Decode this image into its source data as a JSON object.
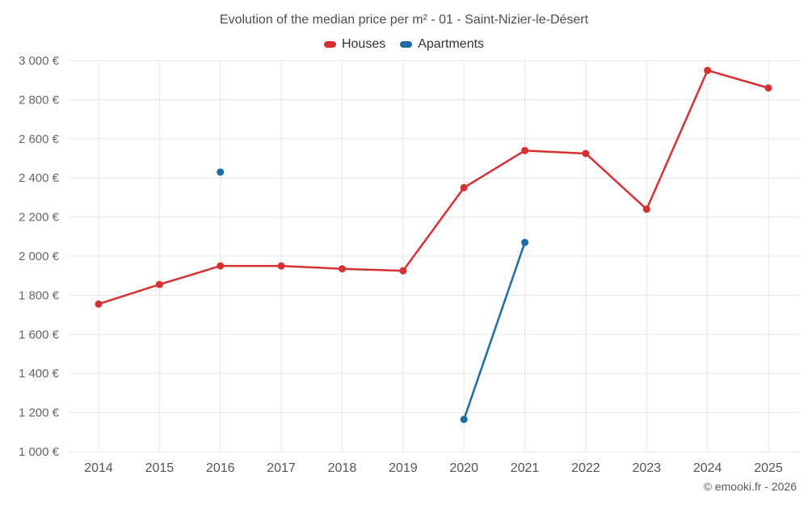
{
  "title": "Evolution of the median price per m² - 01 - Saint-Nizier-le-Désert",
  "legend": {
    "items": [
      {
        "label": "Houses",
        "color": "#d63032"
      },
      {
        "label": "Apartments",
        "color": "#1b6ca8"
      }
    ]
  },
  "footer": "© emooki.fr - 2026",
  "chart_data": {
    "type": "line",
    "x": [
      2014,
      2015,
      2016,
      2017,
      2018,
      2019,
      2020,
      2021,
      2022,
      2023,
      2024,
      2025
    ],
    "series": [
      {
        "name": "Houses",
        "color": "#d63032",
        "points": [
          [
            2014,
            1755
          ],
          [
            2015,
            1855
          ],
          [
            2016,
            1950
          ],
          [
            2017,
            1950
          ],
          [
            2018,
            1935
          ],
          [
            2019,
            1925
          ],
          [
            2020,
            2350
          ],
          [
            2021,
            2540
          ],
          [
            2022,
            2525
          ],
          [
            2023,
            2240
          ],
          [
            2024,
            2950
          ],
          [
            2025,
            2860
          ]
        ]
      },
      {
        "name": "Apartments",
        "color": "#1b6ca8",
        "points": [
          [
            2016,
            2430
          ],
          [
            2020,
            1165
          ],
          [
            2021,
            2070
          ]
        ]
      }
    ],
    "ylim": [
      1000,
      3000
    ],
    "ytick_step": 200,
    "y_unit": "€",
    "grid": true,
    "legend_position": "top"
  }
}
